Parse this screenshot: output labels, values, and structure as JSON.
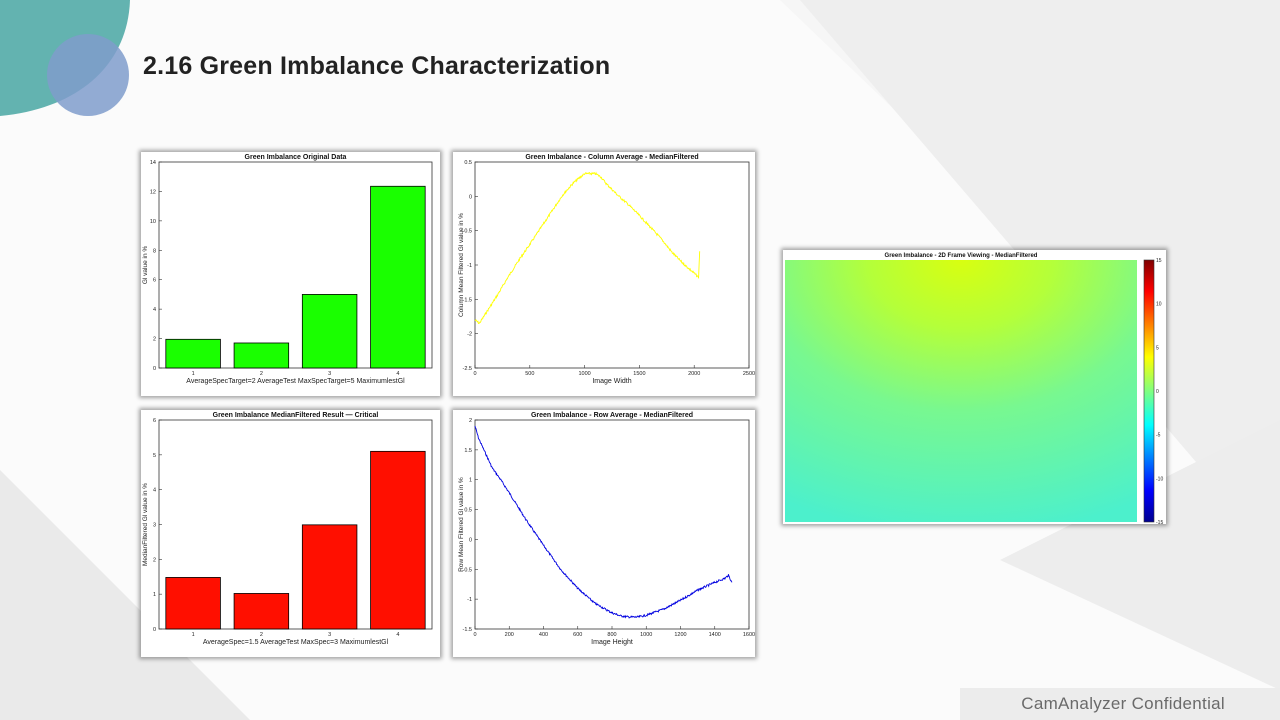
{
  "slide": {
    "title": "2.16  Green Imbalance Characterization",
    "footer": "CamAnalyzer  Confidential"
  },
  "colors": {
    "teal": "#63b3b0",
    "blue_circle": "#7f9ccb",
    "green_bar": "#1aff00",
    "red_bar": "#ff0f00",
    "yellow_line": "#ffff00",
    "blue_line": "#0000e0"
  },
  "chart_data": [
    {
      "type": "bar",
      "title": "Green Imbalance Original Data",
      "categories": [
        "1",
        "2",
        "3",
        "4"
      ],
      "values": [
        1.95,
        1.7,
        5.0,
        12.35
      ],
      "xlabel": "AverageSpecTarget=2 AverageTest MaxSpecTarget=5 MaximumlestGl",
      "ylabel": "Gl value in %",
      "ylim": [
        0,
        14
      ],
      "yticks": [
        0,
        2,
        4,
        6,
        8,
        10,
        12,
        14
      ],
      "color": "#1aff00"
    },
    {
      "type": "line",
      "title": "Green Imbalance - Column Average - MedianFiltered",
      "xlabel": "Image Width",
      "ylabel": "Column Mean Filtered Gl value in %",
      "xlim": [
        0,
        2500
      ],
      "ylim": [
        -2.5,
        0.5
      ],
      "xticks": [
        0,
        500,
        1000,
        1500,
        2000,
        2500
      ],
      "yticks": [
        0.5,
        0,
        -0.5,
        -1,
        -1.5,
        -2,
        -2.5
      ],
      "color": "#ffff00",
      "x": [
        0,
        40,
        100,
        200,
        300,
        400,
        500,
        600,
        700,
        800,
        900,
        1000,
        1100,
        1150,
        1200,
        1300,
        1400,
        1500,
        1600,
        1700,
        1800,
        1900,
        1950,
        2000,
        2040,
        2050
      ],
      "y": [
        -1.8,
        -1.85,
        -1.7,
        -1.45,
        -1.18,
        -0.93,
        -0.7,
        -0.46,
        -0.22,
        0.02,
        0.2,
        0.33,
        0.33,
        0.28,
        0.18,
        0.02,
        -0.12,
        -0.28,
        -0.45,
        -0.62,
        -0.82,
        -0.98,
        -1.05,
        -1.12,
        -1.18,
        -0.8
      ]
    },
    {
      "type": "bar",
      "title": "Green Imbalance MedianFiltered Result — Critical",
      "categories": [
        "1",
        "2",
        "3",
        "4"
      ],
      "values": [
        1.48,
        1.02,
        2.99,
        5.1
      ],
      "xlabel": "AverageSpec=1.5 AverageTest MaxSpec=3 MaximumlestGl",
      "ylabel": "MedianFiltered Gl value in %",
      "ylim": [
        0,
        6
      ],
      "yticks": [
        0,
        1,
        2,
        3,
        4,
        5,
        6
      ],
      "color": "#ff0f00"
    },
    {
      "type": "line",
      "title": "Green Imbalance - Row Average - MedianFiltered",
      "xlabel": "Image Height",
      "ylabel": "Row Mean Filtered Gl value in %",
      "xlim": [
        0,
        1600
      ],
      "ylim": [
        -1.5,
        2
      ],
      "xticks": [
        0,
        200,
        400,
        600,
        800,
        1000,
        1200,
        1400,
        1600
      ],
      "yticks": [
        2,
        1.5,
        1,
        0.5,
        0,
        -0.5,
        -1,
        -1.5
      ],
      "color": "#0000e0",
      "x": [
        0,
        20,
        60,
        100,
        150,
        200,
        300,
        400,
        500,
        600,
        700,
        800,
        850,
        900,
        950,
        1000,
        1100,
        1200,
        1300,
        1400,
        1460,
        1480,
        1500
      ],
      "y": [
        1.9,
        1.7,
        1.45,
        1.2,
        1.0,
        0.78,
        0.32,
        -0.1,
        -0.5,
        -0.82,
        -1.07,
        -1.23,
        -1.28,
        -1.3,
        -1.3,
        -1.27,
        -1.17,
        -1.02,
        -0.85,
        -0.72,
        -0.65,
        -0.6,
        -0.72
      ]
    },
    {
      "type": "heatmap",
      "title": "Green Imbalance - 2D Frame Viewing - MedianFiltered",
      "colorbar_ticks": [
        15,
        10,
        5,
        0,
        -5,
        -10,
        -15
      ],
      "clim": [
        -15,
        15
      ],
      "description_colors": [
        "#c8ff1a",
        "#5ff5c0"
      ]
    }
  ]
}
